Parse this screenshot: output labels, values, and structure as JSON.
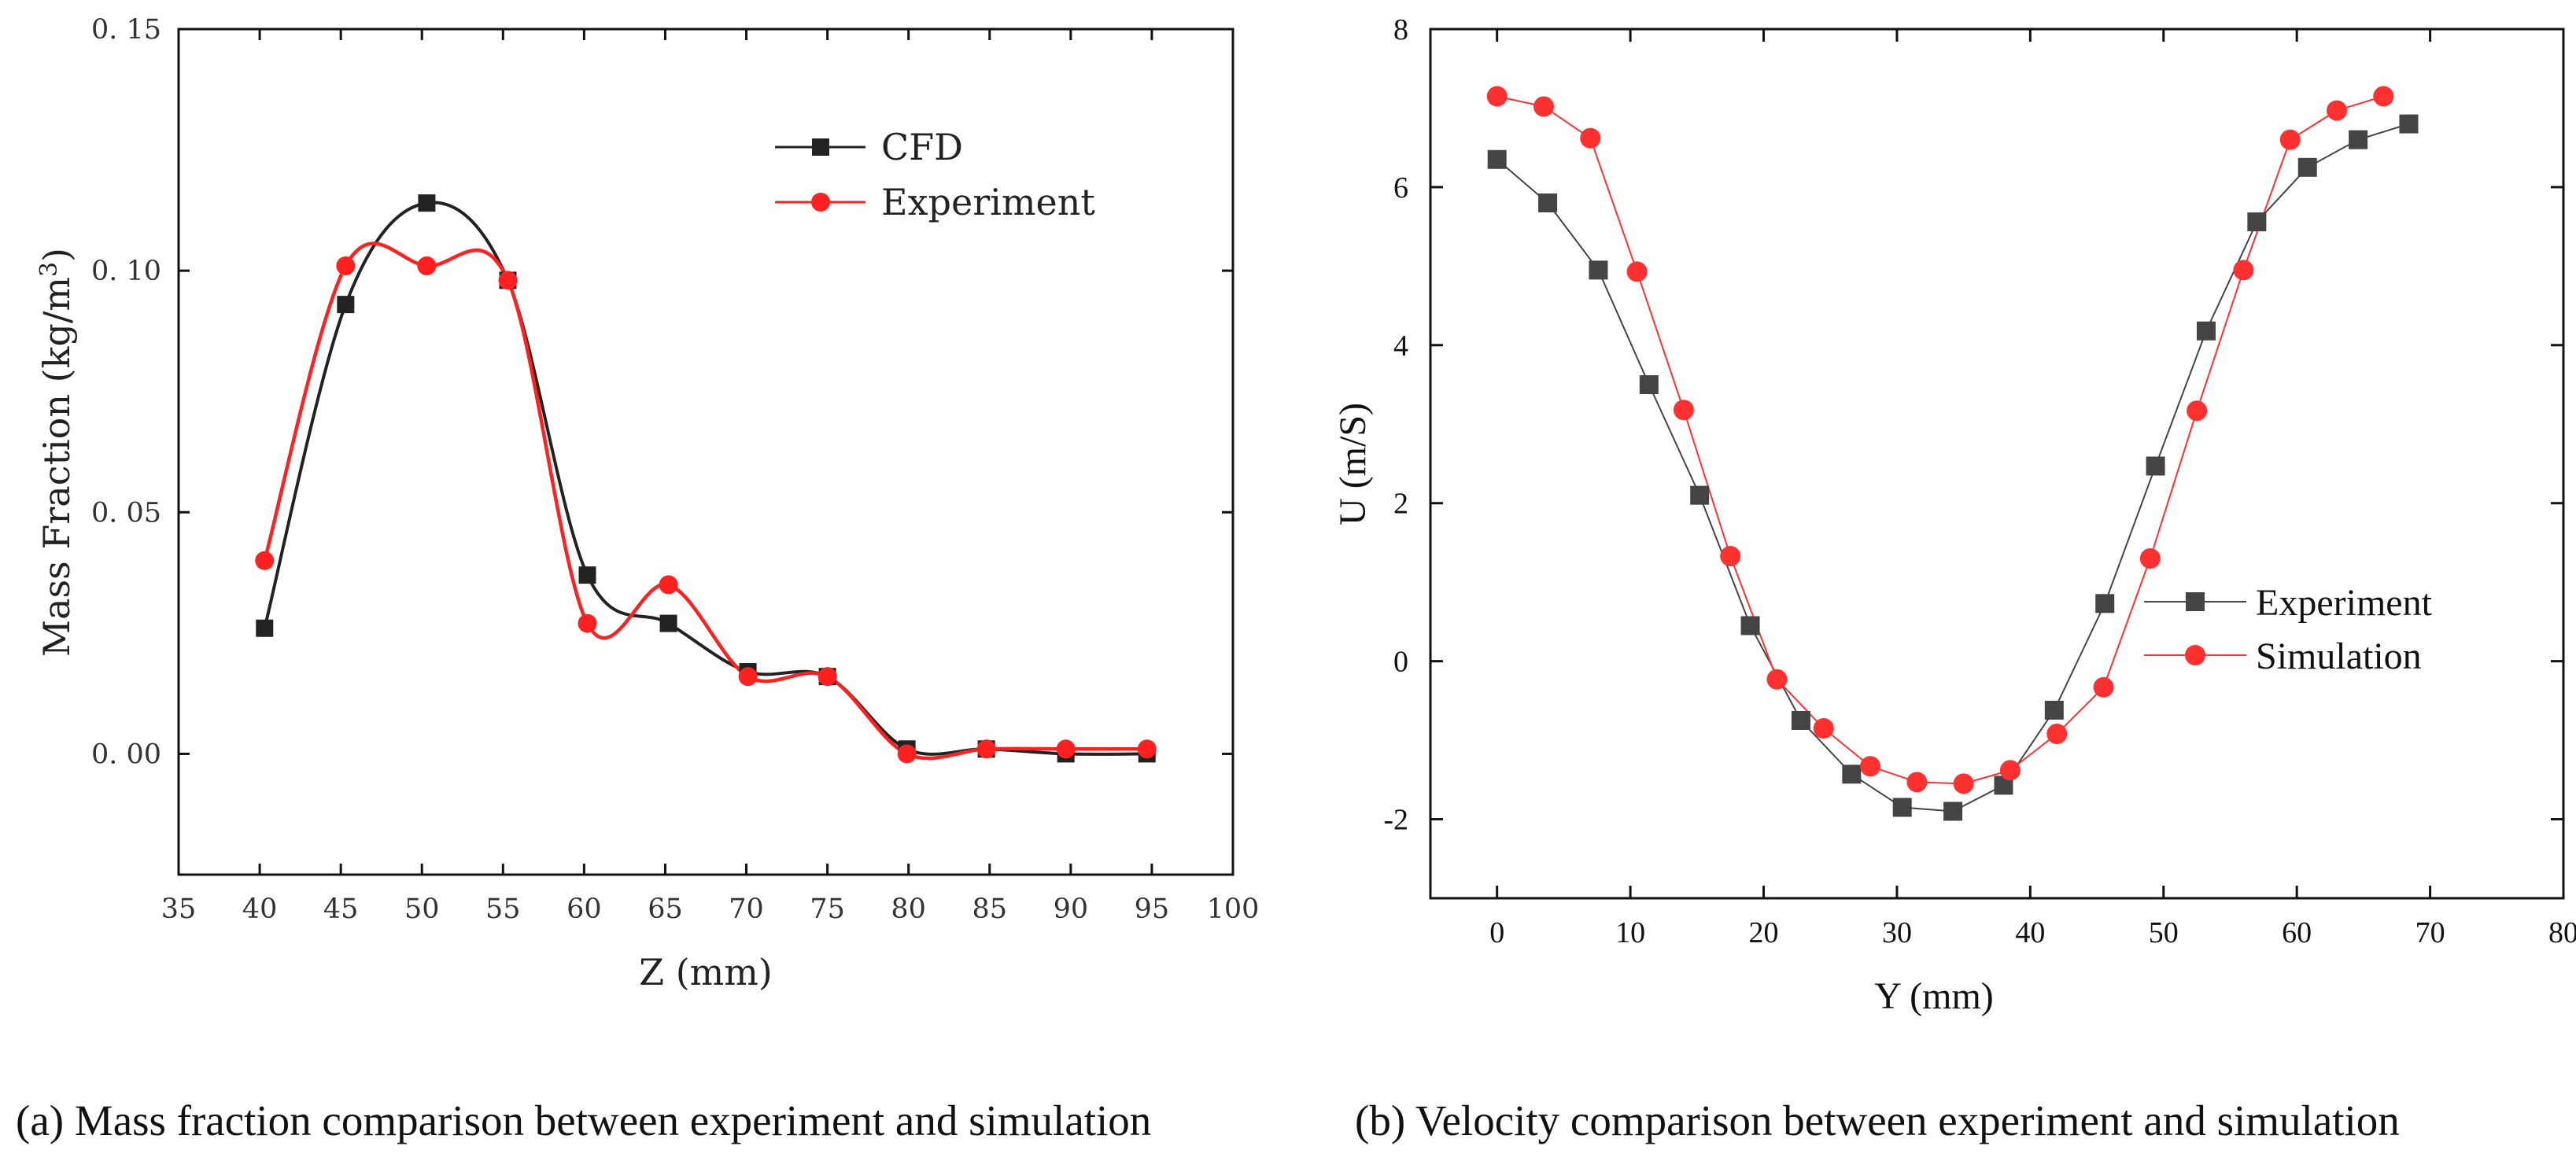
{
  "chart_data": [
    {
      "type": "line",
      "panel": "a",
      "caption": "(a) Mass fraction comparison between experiment and simulation",
      "xlabel": "Z (mm)",
      "ylabel": "Mass Fraction (kg/m",
      "ylabel_sup": "3",
      "ylabel_tail": ")",
      "xlim": [
        35,
        100
      ],
      "ylim": [
        -0.025,
        0.15
      ],
      "xticks": [
        35,
        40,
        45,
        50,
        55,
        60,
        65,
        70,
        75,
        80,
        85,
        90,
        95,
        100
      ],
      "xtick_labels": [
        "35",
        "40",
        "45",
        "50",
        "55",
        "60",
        "65",
        "70",
        "75",
        "80",
        "85",
        "90",
        "95",
        "100"
      ],
      "yticks": [
        0.0,
        0.05,
        0.1,
        0.15
      ],
      "ytick_labels": [
        "0. 00",
        "0. 05",
        "0. 10",
        "0. 15"
      ],
      "legend_position": "top-right",
      "series": [
        {
          "name": "CFD",
          "color": "#222222",
          "marker": "square",
          "x": [
            40.3,
            45.3,
            50.3,
            55.3,
            60.2,
            65.2,
            70.1,
            75.0,
            79.9,
            84.8,
            89.7,
            94.7
          ],
          "y": [
            0.026,
            0.093,
            0.114,
            0.098,
            0.037,
            0.027,
            0.017,
            0.016,
            0.001,
            0.001,
            0.0,
            0.0
          ]
        },
        {
          "name": "Experiment",
          "color": "#ff2020",
          "marker": "circle",
          "x": [
            40.3,
            45.3,
            50.3,
            55.3,
            60.2,
            65.2,
            70.1,
            75.0,
            79.9,
            84.8,
            89.7,
            94.7
          ],
          "y": [
            0.04,
            0.101,
            0.101,
            0.098,
            0.027,
            0.035,
            0.016,
            0.016,
            0.0,
            0.001,
            0.001,
            0.001
          ]
        }
      ]
    },
    {
      "type": "line",
      "panel": "b",
      "caption": "(b) Velocity comparison between experiment and simulation",
      "xlabel": "Y (mm)",
      "ylabel": "U (m/S)",
      "xlim": [
        -5,
        80
      ],
      "ylim": [
        -3,
        8
      ],
      "xticks": [
        0,
        10,
        20,
        30,
        40,
        50,
        60,
        70,
        80
      ],
      "xtick_labels": [
        "0",
        "10",
        "20",
        "30",
        "40",
        "50",
        "60",
        "70",
        "80"
      ],
      "yticks": [
        -2,
        0,
        2,
        4,
        6,
        8
      ],
      "ytick_labels": [
        "-2",
        "0",
        "2",
        "4",
        "6",
        "8"
      ],
      "legend_position": "center-right",
      "series": [
        {
          "name": "Experiment",
          "color": "#444444",
          "marker": "square",
          "x": [
            0,
            3.8,
            7.6,
            11.4,
            15.2,
            19.0,
            22.8,
            26.6,
            30.4,
            34.2,
            38.0,
            41.8,
            45.6,
            49.4,
            53.2,
            57.0,
            60.8,
            64.6,
            68.4
          ],
          "y": [
            6.35,
            5.8,
            4.95,
            3.5,
            2.1,
            0.45,
            -0.75,
            -1.43,
            -1.85,
            -1.9,
            -1.57,
            -0.62,
            0.73,
            2.47,
            4.18,
            5.56,
            6.25,
            6.6,
            6.8
          ]
        },
        {
          "name": "Simulation",
          "color": "#ff3030",
          "marker": "circle",
          "x": [
            0,
            3.5,
            7.0,
            10.5,
            14.0,
            17.5,
            21.0,
            24.5,
            28.0,
            31.5,
            35.0,
            38.5,
            42.0,
            45.5,
            49.0,
            52.5,
            56.0,
            59.5,
            63.0,
            66.5
          ],
          "y": [
            7.15,
            7.02,
            6.62,
            4.93,
            3.18,
            1.33,
            -0.23,
            -0.85,
            -1.33,
            -1.53,
            -1.55,
            -1.38,
            -0.92,
            -0.33,
            1.3,
            3.17,
            4.95,
            6.6,
            6.97,
            7.15
          ]
        }
      ]
    }
  ]
}
